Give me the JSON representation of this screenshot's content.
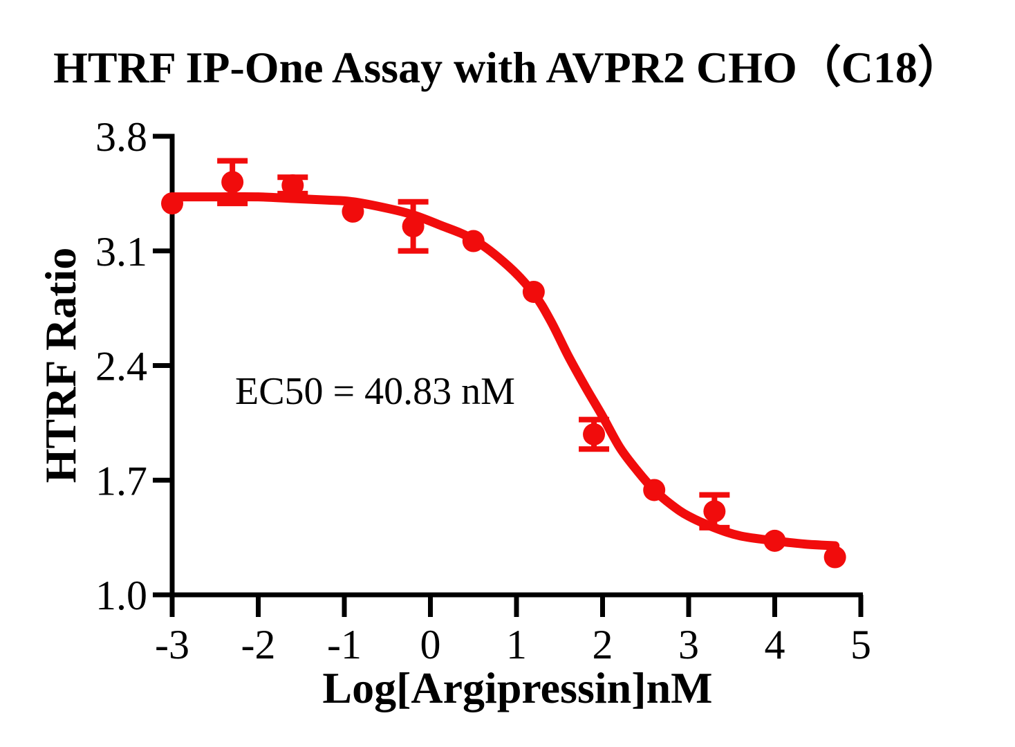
{
  "title": "HTRF IP-One Assay with AVPR2 CHO（C18）",
  "chart_data": {
    "type": "scatter",
    "title": "HTRF IP-One Assay with AVPR2 CHO（C18）",
    "xlabel": "Log[Argipressin]nM",
    "ylabel": "HTRF Ratio",
    "annotation": "EC50 = 40.83 nM",
    "ec50_nM": 40.83,
    "x_ticks": [
      -3,
      -2,
      -1,
      0,
      1,
      2,
      3,
      4,
      5
    ],
    "y_ticks": [
      3.8,
      3.1,
      2.4,
      1.7,
      1.0
    ],
    "xlim": [
      -3,
      5
    ],
    "ylim": [
      1.0,
      3.8
    ],
    "grid": false,
    "legend_position": "none",
    "axis_color": "#000000",
    "series": [
      {
        "name": "Argipressin",
        "color": "#F10C0C",
        "marker": "circle",
        "error_bars": "sd",
        "points": [
          {
            "x": -3.0,
            "y": 3.39,
            "err": 0
          },
          {
            "x": -2.3,
            "y": 3.52,
            "err": 0.13
          },
          {
            "x": -1.6,
            "y": 3.5,
            "err": 0.05
          },
          {
            "x": -0.9,
            "y": 3.34,
            "err": 0
          },
          {
            "x": -0.2,
            "y": 3.25,
            "err": 0.15
          },
          {
            "x": 0.5,
            "y": 3.16,
            "err": 0
          },
          {
            "x": 1.2,
            "y": 2.85,
            "err": 0
          },
          {
            "x": 1.9,
            "y": 1.98,
            "err": 0.09
          },
          {
            "x": 2.6,
            "y": 1.64,
            "err": 0
          },
          {
            "x": 3.3,
            "y": 1.51,
            "err": 0.1
          },
          {
            "x": 4.0,
            "y": 1.33,
            "err": 0
          },
          {
            "x": 4.7,
            "y": 1.23,
            "err": 0
          }
        ],
        "fit_curve": [
          [
            -3.0,
            3.43
          ],
          [
            -2.5,
            3.43
          ],
          [
            -2.0,
            3.43
          ],
          [
            -1.6,
            3.42
          ],
          [
            -1.2,
            3.41
          ],
          [
            -0.9,
            3.4
          ],
          [
            -0.5,
            3.36
          ],
          [
            -0.2,
            3.32
          ],
          [
            0.1,
            3.26
          ],
          [
            0.5,
            3.17
          ],
          [
            0.9,
            3.01
          ],
          [
            1.2,
            2.84
          ],
          [
            1.4,
            2.67
          ],
          [
            1.6,
            2.46
          ],
          [
            1.8,
            2.27
          ],
          [
            2.0,
            2.09
          ],
          [
            2.2,
            1.9
          ],
          [
            2.4,
            1.76
          ],
          [
            2.6,
            1.64
          ],
          [
            2.8,
            1.55
          ],
          [
            3.0,
            1.48
          ],
          [
            3.3,
            1.41
          ],
          [
            3.6,
            1.36
          ],
          [
            4.0,
            1.33
          ],
          [
            4.35,
            1.31
          ],
          [
            4.7,
            1.3
          ]
        ]
      }
    ]
  }
}
